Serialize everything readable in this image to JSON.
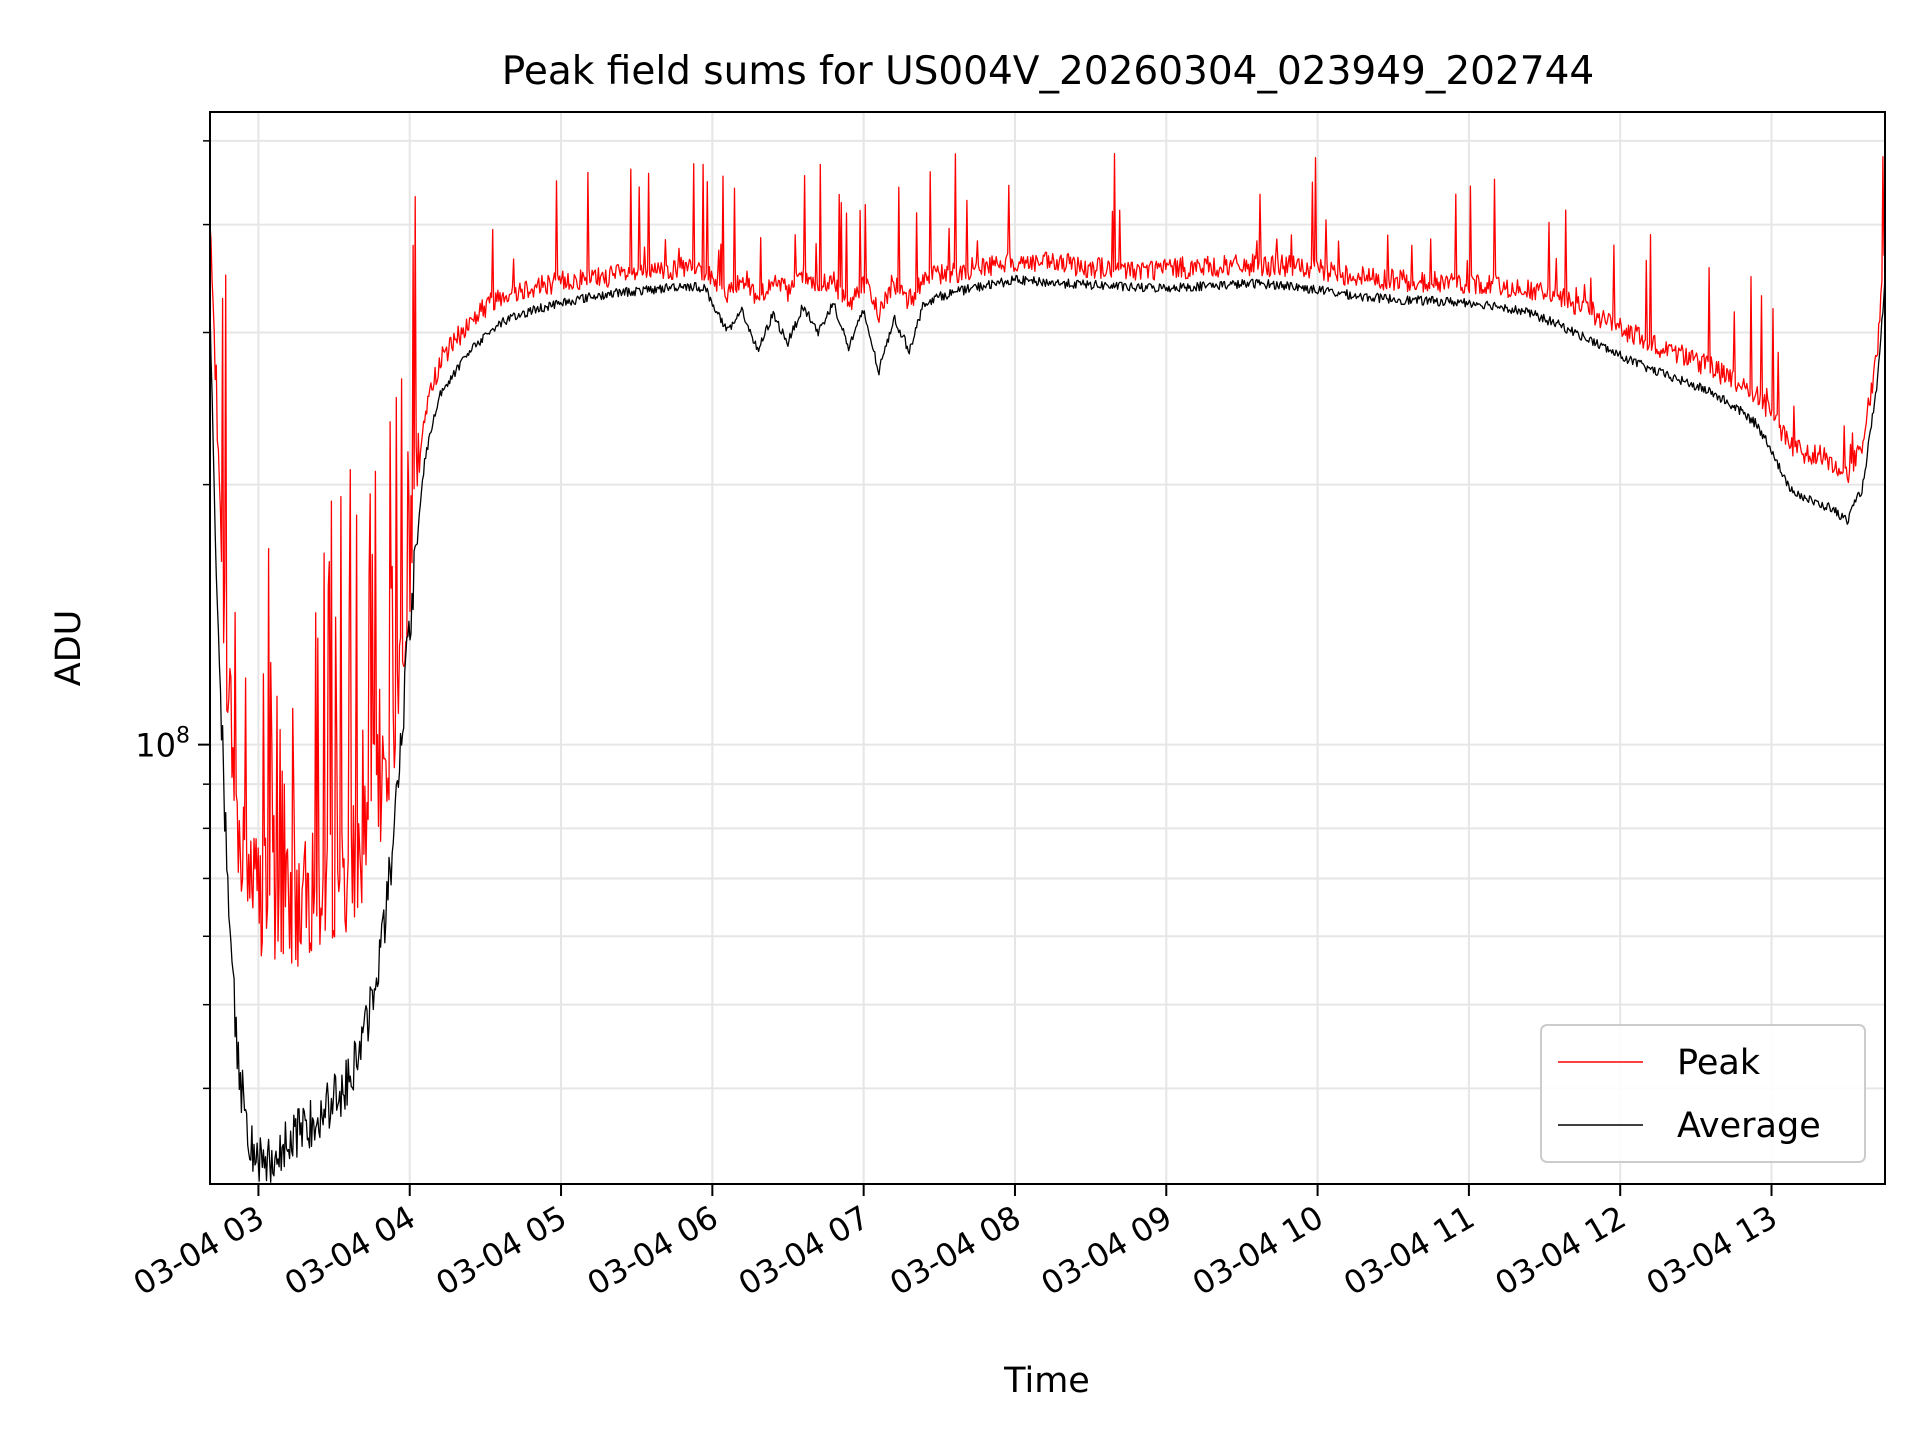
{
  "chart_data": {
    "type": "line",
    "title": "Peak field sums for US004V_20260304_023949_202744",
    "xlabel": "Time",
    "ylabel": "ADU",
    "y_scale": "log",
    "ylim": [
      31000000,
      540000000
    ],
    "xlim_hours": [
      2.68,
      13.75
    ],
    "grid": true,
    "legend_position": "lower-right",
    "x_ticks": [
      {
        "hour": 3,
        "label": "03-04 03"
      },
      {
        "hour": 4,
        "label": "03-04 04"
      },
      {
        "hour": 5,
        "label": "03-04 05"
      },
      {
        "hour": 6,
        "label": "03-04 06"
      },
      {
        "hour": 7,
        "label": "03-04 07"
      },
      {
        "hour": 8,
        "label": "03-04 08"
      },
      {
        "hour": 9,
        "label": "03-04 09"
      },
      {
        "hour": 10,
        "label": "03-04 10"
      },
      {
        "hour": 11,
        "label": "03-04 11"
      },
      {
        "hour": 12,
        "label": "03-04 12"
      },
      {
        "hour": 13,
        "label": "03-04 13"
      }
    ],
    "y_tick_major": {
      "value": 100000000,
      "label_base": "10",
      "label_exp": "8"
    },
    "y_minor_ticks": [
      40000000,
      50000000,
      60000000,
      70000000,
      80000000,
      90000000,
      200000000,
      300000000,
      400000000,
      500000000
    ],
    "x_hours": [
      2.68,
      2.72,
      2.78,
      2.85,
      2.92,
      3.0,
      3.1,
      3.2,
      3.3,
      3.4,
      3.5,
      3.6,
      3.7,
      3.8,
      3.88,
      3.93,
      3.98,
      4.05,
      4.1,
      4.2,
      4.3,
      4.4,
      4.5,
      4.6,
      4.8,
      5.0,
      5.2,
      5.4,
      5.6,
      5.8,
      5.95,
      6.1,
      6.2,
      6.3,
      6.4,
      6.5,
      6.6,
      6.7,
      6.8,
      6.9,
      7.0,
      7.1,
      7.2,
      7.3,
      7.4,
      7.5,
      7.6,
      7.8,
      8.0,
      8.3,
      8.6,
      8.8,
      9.0,
      9.3,
      9.6,
      9.8,
      10.0,
      10.3,
      10.6,
      11.0,
      11.2,
      11.4,
      11.6,
      11.8,
      12.0,
      12.2,
      12.4,
      12.6,
      12.8,
      12.9,
      13.0,
      13.1,
      13.2,
      13.3,
      13.4,
      13.45,
      13.5,
      13.6,
      13.7,
      13.75
    ],
    "series": [
      {
        "name": "Peak",
        "color": "#ff0000",
        "values": [
          400000000,
          250000000,
          130000000,
          80000000,
          68000000,
          64000000,
          62000000,
          61000000,
          62000000,
          64000000,
          66000000,
          68000000,
          74000000,
          84000000,
          95000000,
          115000000,
          145000000,
          195000000,
          240000000,
          275000000,
          290000000,
          305000000,
          318000000,
          328000000,
          335000000,
          340000000,
          343000000,
          346000000,
          348000000,
          352000000,
          350000000,
          330000000,
          345000000,
          325000000,
          340000000,
          330000000,
          345000000,
          335000000,
          340000000,
          320000000,
          340000000,
          312000000,
          340000000,
          322000000,
          344000000,
          346000000,
          348000000,
          354000000,
          358000000,
          356000000,
          352000000,
          350000000,
          352000000,
          353000000,
          355000000,
          354000000,
          350000000,
          344000000,
          340000000,
          338000000,
          336000000,
          332000000,
          325000000,
          314000000,
          300000000,
          288000000,
          280000000,
          270000000,
          258000000,
          252000000,
          238000000,
          222000000,
          216000000,
          214000000,
          210000000,
          205000000,
          203000000,
          220000000,
          280000000,
          380000000
        ]
      },
      {
        "name": "Average",
        "color": "#000000",
        "values": [
          320000000,
          160000000,
          82000000,
          46000000,
          36000000,
          33000000,
          33500000,
          34500000,
          36000000,
          37500000,
          39000000,
          41000000,
          46000000,
          56000000,
          74000000,
          95000000,
          125000000,
          175000000,
          215000000,
          255000000,
          270000000,
          285000000,
          298000000,
          308000000,
          318000000,
          325000000,
          330000000,
          334000000,
          336000000,
          340000000,
          338000000,
          300000000,
          318000000,
          285000000,
          315000000,
          292000000,
          322000000,
          300000000,
          325000000,
          288000000,
          318000000,
          270000000,
          312000000,
          286000000,
          325000000,
          330000000,
          334000000,
          340000000,
          345000000,
          342000000,
          340000000,
          338000000,
          338000000,
          340000000,
          342000000,
          340000000,
          336000000,
          330000000,
          327000000,
          325000000,
          322000000,
          316000000,
          306000000,
          294000000,
          282000000,
          272000000,
          264000000,
          256000000,
          243000000,
          235000000,
          220000000,
          200000000,
          194000000,
          190000000,
          188000000,
          184000000,
          182000000,
          198000000,
          262000000,
          345000000
        ]
      }
    ]
  }
}
